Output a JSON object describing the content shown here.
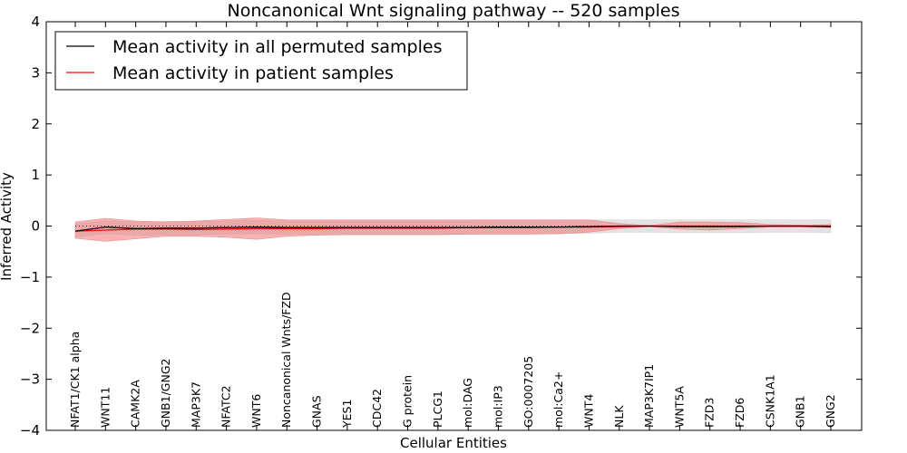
{
  "chart_data": {
    "type": "line",
    "title": "Noncanonical Wnt signaling pathway -- 520 samples",
    "xlabel": "Cellular Entities",
    "ylabel": "Inferred Activity",
    "ylim": [
      -4,
      4
    ],
    "yticks": [
      4,
      3,
      2,
      1,
      0,
      -1,
      -2,
      -3,
      -4
    ],
    "ytick_labels": [
      "4",
      "3",
      "2",
      "1",
      "0",
      "−1",
      "−2",
      "−3",
      "−4"
    ],
    "grid": false,
    "legend_position": "top-left",
    "categories": [
      "NFAT1/CK1 alpha",
      "WNT11",
      "CAMK2A",
      "GNB1/GNG2",
      "MAP3K7",
      "NFATC2",
      "WNT6",
      "Noncanonical Wnts/FZD",
      "GNAS",
      "YES1",
      "CDC42",
      "G protein",
      "PLCG1",
      "mol:DAG",
      "mol:IP3",
      "GO:0007205",
      "mol:Ca2+",
      "WNT4",
      "NLK",
      "MAP3K7IP1",
      "WNT5A",
      "FZD3",
      "FZD6",
      "CSNK1A1",
      "GNB1",
      "GNG2"
    ],
    "series": [
      {
        "name": "Mean activity in all permuted samples",
        "color": "#000000",
        "band_color": "#cccccc",
        "values": [
          -0.1,
          -0.02,
          -0.05,
          -0.04,
          -0.04,
          -0.03,
          -0.02,
          -0.03,
          -0.03,
          -0.03,
          -0.03,
          -0.03,
          -0.03,
          -0.03,
          -0.02,
          -0.02,
          -0.02,
          -0.01,
          0.0,
          0.0,
          -0.01,
          -0.01,
          -0.01,
          0.0,
          0.0,
          -0.01
        ],
        "band_lower": [
          -0.22,
          -0.15,
          -0.18,
          -0.17,
          -0.17,
          -0.16,
          -0.15,
          -0.16,
          -0.16,
          -0.16,
          -0.16,
          -0.16,
          -0.16,
          -0.16,
          -0.15,
          -0.15,
          -0.15,
          -0.14,
          -0.12,
          -0.12,
          -0.13,
          -0.13,
          -0.13,
          -0.12,
          -0.12,
          -0.13
        ],
        "band_upper": [
          0.04,
          0.1,
          0.08,
          0.09,
          0.09,
          0.1,
          0.11,
          0.1,
          0.1,
          0.1,
          0.1,
          0.1,
          0.1,
          0.1,
          0.11,
          0.11,
          0.11,
          0.12,
          0.12,
          0.12,
          0.12,
          0.12,
          0.12,
          0.12,
          0.12,
          0.12
        ]
      },
      {
        "name": "Mean activity in patient samples",
        "color": "#ff0000",
        "band_color": "#f08080",
        "values": [
          -0.1,
          -0.08,
          -0.06,
          -0.06,
          -0.07,
          -0.06,
          -0.05,
          -0.05,
          -0.05,
          -0.04,
          -0.04,
          -0.04,
          -0.04,
          -0.03,
          -0.03,
          -0.03,
          -0.02,
          -0.02,
          -0.01,
          0.0,
          0.0,
          0.0,
          0.0,
          0.0,
          0.0,
          0.0
        ],
        "band_lower": [
          -0.24,
          -0.3,
          -0.25,
          -0.2,
          -0.2,
          -0.22,
          -0.26,
          -0.2,
          -0.18,
          -0.17,
          -0.17,
          -0.17,
          -0.17,
          -0.16,
          -0.16,
          -0.16,
          -0.15,
          -0.12,
          -0.05,
          -0.01,
          -0.06,
          -0.08,
          -0.05,
          -0.02,
          -0.02,
          -0.03
        ],
        "band_upper": [
          0.08,
          0.15,
          0.1,
          0.08,
          0.1,
          0.13,
          0.16,
          0.12,
          0.12,
          0.12,
          0.12,
          0.12,
          0.12,
          0.12,
          0.12,
          0.12,
          0.12,
          0.12,
          0.05,
          0.01,
          0.08,
          0.08,
          0.07,
          0.03,
          0.02,
          0.03
        ]
      }
    ]
  }
}
